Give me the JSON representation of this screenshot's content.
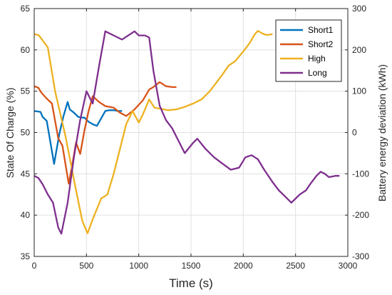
{
  "chart_data": {
    "type": "line",
    "xlabel": "Time (s)",
    "ylabel_left": "State Of Charge (%)",
    "ylabel_right": "Battery energy deviation (kWh)",
    "xlim": [
      0,
      3000
    ],
    "ylim_left": [
      35,
      65
    ],
    "ylim_right": [
      -300,
      300
    ],
    "x_ticks": [
      0,
      500,
      1000,
      1500,
      2000,
      2500,
      3000
    ],
    "y_ticks_left": [
      35,
      40,
      45,
      50,
      55,
      60,
      65
    ],
    "y_ticks_right": [
      -300,
      -200,
      -100,
      0,
      100,
      200,
      300
    ],
    "grid": true,
    "legend_position": "top-right",
    "series": [
      {
        "name": "Short1",
        "color": "#0072BD",
        "axis": "left",
        "points": [
          [
            0,
            52.6
          ],
          [
            60,
            52.5
          ],
          [
            80,
            51.9
          ],
          [
            120,
            51.4
          ],
          [
            190,
            46.2
          ],
          [
            240,
            49.8
          ],
          [
            280,
            52.0
          ],
          [
            320,
            53.7
          ],
          [
            340,
            52.8
          ],
          [
            380,
            52.4
          ],
          [
            420,
            51.9
          ],
          [
            460,
            51.8
          ],
          [
            480,
            51.8
          ],
          [
            520,
            51.3
          ],
          [
            560,
            51.0
          ],
          [
            600,
            50.8
          ],
          [
            640,
            51.7
          ],
          [
            680,
            52.6
          ],
          [
            720,
            52.7
          ],
          [
            760,
            52.7
          ],
          [
            800,
            52.6
          ],
          [
            840,
            52.6
          ]
        ]
      },
      {
        "name": "Short2",
        "color": "#D95319",
        "axis": "left",
        "points": [
          [
            0,
            55.6
          ],
          [
            40,
            55.4
          ],
          [
            70,
            54.8
          ],
          [
            120,
            54.1
          ],
          [
            170,
            53.5
          ],
          [
            230,
            49.3
          ],
          [
            270,
            48.4
          ],
          [
            330,
            43.8
          ],
          [
            360,
            45.8
          ],
          [
            400,
            48.8
          ],
          [
            440,
            47.4
          ],
          [
            480,
            50.2
          ],
          [
            520,
            52.6
          ],
          [
            560,
            54.4
          ],
          [
            620,
            53.7
          ],
          [
            680,
            53.2
          ],
          [
            760,
            53.0
          ],
          [
            820,
            52.4
          ],
          [
            880,
            52.0
          ],
          [
            960,
            52.8
          ],
          [
            1040,
            53.9
          ],
          [
            1100,
            55.2
          ],
          [
            1140,
            55.5
          ],
          [
            1200,
            56.1
          ],
          [
            1260,
            55.6
          ],
          [
            1320,
            55.5
          ],
          [
            1360,
            55.5
          ]
        ]
      },
      {
        "name": "High",
        "color": "#EDB120",
        "axis": "left",
        "points": [
          [
            0,
            61.9
          ],
          [
            40,
            61.8
          ],
          [
            60,
            61.5
          ],
          [
            130,
            60.3
          ],
          [
            200,
            55.0
          ],
          [
            300,
            49.5
          ],
          [
            400,
            43.0
          ],
          [
            460,
            39.3
          ],
          [
            510,
            37.8
          ],
          [
            560,
            39.5
          ],
          [
            640,
            42.0
          ],
          [
            700,
            42.5
          ],
          [
            760,
            45.0
          ],
          [
            820,
            48.0
          ],
          [
            880,
            51.0
          ],
          [
            940,
            52.6
          ],
          [
            1000,
            51.2
          ],
          [
            1040,
            52.2
          ],
          [
            1100,
            54.0
          ],
          [
            1150,
            53.0
          ],
          [
            1200,
            52.9
          ],
          [
            1280,
            52.7
          ],
          [
            1360,
            52.8
          ],
          [
            1440,
            53.1
          ],
          [
            1520,
            53.5
          ],
          [
            1600,
            54.0
          ],
          [
            1680,
            55.0
          ],
          [
            1740,
            56.0
          ],
          [
            1800,
            57.0
          ],
          [
            1860,
            58.1
          ],
          [
            1920,
            58.6
          ],
          [
            2000,
            59.8
          ],
          [
            2060,
            60.8
          ],
          [
            2110,
            61.9
          ],
          [
            2140,
            62.3
          ],
          [
            2180,
            62.0
          ],
          [
            2220,
            61.8
          ],
          [
            2280,
            61.9
          ]
        ]
      },
      {
        "name": "Long",
        "color": "#7E2F8E",
        "axis": "right",
        "points": [
          [
            0,
            -105
          ],
          [
            40,
            -110
          ],
          [
            80,
            -125
          ],
          [
            130,
            -150
          ],
          [
            180,
            -170
          ],
          [
            230,
            -230
          ],
          [
            260,
            -245
          ],
          [
            320,
            -170
          ],
          [
            380,
            -60
          ],
          [
            440,
            30
          ],
          [
            500,
            100
          ],
          [
            560,
            70
          ],
          [
            620,
            160
          ],
          [
            680,
            245
          ],
          [
            760,
            235
          ],
          [
            840,
            225
          ],
          [
            900,
            235
          ],
          [
            960,
            245
          ],
          [
            1000,
            235
          ],
          [
            1060,
            235
          ],
          [
            1100,
            230
          ],
          [
            1140,
            150
          ],
          [
            1200,
            65
          ],
          [
            1260,
            30
          ],
          [
            1320,
            10
          ],
          [
            1380,
            -20
          ],
          [
            1440,
            -50
          ],
          [
            1520,
            -25
          ],
          [
            1560,
            -15
          ],
          [
            1640,
            -40
          ],
          [
            1720,
            -60
          ],
          [
            1800,
            -75
          ],
          [
            1880,
            -90
          ],
          [
            1960,
            -85
          ],
          [
            2020,
            -60
          ],
          [
            2080,
            -55
          ],
          [
            2140,
            -65
          ],
          [
            2200,
            -90
          ],
          [
            2280,
            -120
          ],
          [
            2340,
            -140
          ],
          [
            2400,
            -155
          ],
          [
            2460,
            -170
          ],
          [
            2500,
            -160
          ],
          [
            2540,
            -150
          ],
          [
            2600,
            -140
          ],
          [
            2640,
            -125
          ],
          [
            2700,
            -105
          ],
          [
            2740,
            -95
          ],
          [
            2780,
            -100
          ],
          [
            2820,
            -108
          ],
          [
            2880,
            -105
          ],
          [
            2920,
            -105
          ]
        ]
      }
    ]
  }
}
